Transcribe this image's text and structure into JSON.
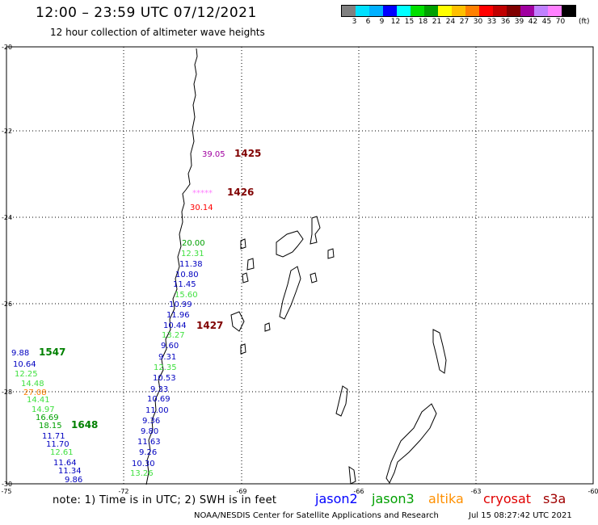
{
  "header": {
    "title": "12:00 – 23:59 UTC 07/12/2021",
    "subtitle": "12 hour collection of altimeter wave heights"
  },
  "legend": {
    "colors": [
      "#808080",
      "#00e0ff",
      "#00b0ff",
      "#0000ff",
      "#00ffff",
      "#00e000",
      "#00a000",
      "#ffff00",
      "#ffc000",
      "#ff8000",
      "#ff0000",
      "#c00000",
      "#800000",
      "#a000a0",
      "#c080ff",
      "#ff80ff",
      "#000000"
    ],
    "labels": [
      "3",
      "6",
      "9",
      "12",
      "15",
      "18",
      "21",
      "24",
      "27",
      "30",
      "33",
      "36",
      "39",
      "42",
      "45",
      "70"
    ],
    "unit": "(ft)"
  },
  "axes": {
    "lat_labels": [
      "-20",
      "-22",
      "-24",
      "-26",
      "-28",
      "-30"
    ],
    "lon_labels": [
      "-75",
      "-72",
      "-69",
      "-66",
      "-63",
      "-60"
    ]
  },
  "pass_times": [
    {
      "text": "1425",
      "color": "#800000"
    },
    {
      "text": "1426",
      "color": "#800000"
    },
    {
      "text": "1427",
      "color": "#800000"
    },
    {
      "text": "1547",
      "color": "#008000"
    },
    {
      "text": "1648",
      "color": "#008000"
    }
  ],
  "measurements": [
    {
      "text": "39.05",
      "color": "#a000a0"
    },
    {
      "text": "*****",
      "color": "#ff80ff"
    },
    {
      "text": "30.14",
      "color": "#ff0000"
    },
    {
      "text": "20.00",
      "color": "#00a000"
    },
    {
      "text": "12.31",
      "color": "#40e040"
    },
    {
      "text": "11.38",
      "color": "#0000c0"
    },
    {
      "text": "10.80",
      "color": "#0000c0"
    },
    {
      "text": "11.45",
      "color": "#0000c0"
    },
    {
      "text": "15.60",
      "color": "#40e040"
    },
    {
      "text": "10.99",
      "color": "#0000c0"
    },
    {
      "text": "11.96",
      "color": "#0000c0"
    },
    {
      "text": "10.44",
      "color": "#0000c0"
    },
    {
      "text": "13.27",
      "color": "#40e040"
    },
    {
      "text": "9.60",
      "color": "#0000c0"
    },
    {
      "text": "9.31",
      "color": "#0000c0"
    },
    {
      "text": "12.35",
      "color": "#40e040"
    },
    {
      "text": "10.53",
      "color": "#0000c0"
    },
    {
      "text": "9.33",
      "color": "#0000c0"
    },
    {
      "text": "10.69",
      "color": "#0000c0"
    },
    {
      "text": "11.00",
      "color": "#0000c0"
    },
    {
      "text": "9.36",
      "color": "#0000c0"
    },
    {
      "text": "9.80",
      "color": "#0000c0"
    },
    {
      "text": "11.63",
      "color": "#0000c0"
    },
    {
      "text": "9.26",
      "color": "#0000c0"
    },
    {
      "text": "10.30",
      "color": "#0000c0"
    },
    {
      "text": "13.26",
      "color": "#40e040"
    },
    {
      "text": "9.88",
      "color": "#0000c0"
    },
    {
      "text": "10.64",
      "color": "#0000c0"
    },
    {
      "text": "12.25",
      "color": "#40e040"
    },
    {
      "text": "14.48",
      "color": "#40e040"
    },
    {
      "text": "27.08",
      "color": "#ff8000"
    },
    {
      "text": "14.41",
      "color": "#40e040"
    },
    {
      "text": "14.97",
      "color": "#40e040"
    },
    {
      "text": "16.69",
      "color": "#00a000"
    },
    {
      "text": "18.15",
      "color": "#00a000"
    },
    {
      "text": "11.71",
      "color": "#0000c0"
    },
    {
      "text": "11.70",
      "color": "#0000c0"
    },
    {
      "text": "12.61",
      "color": "#40e040"
    },
    {
      "text": "11.64",
      "color": "#0000c0"
    },
    {
      "text": "11.34",
      "color": "#0000c0"
    },
    {
      "text": "9.86",
      "color": "#0000c0"
    }
  ],
  "footer": {
    "note": "note:  1) Time is in UTC;  2) SWH is in feet",
    "satellites": [
      {
        "name": "jason2",
        "color": "#0000ff"
      },
      {
        "name": "jason3",
        "color": "#00a000"
      },
      {
        "name": "altika",
        "color": "#ff9000"
      },
      {
        "name": "cryosat",
        "color": "#e00000"
      },
      {
        "name": "s3a",
        "color": "#a00000"
      }
    ],
    "credit": "NOAA/NESDIS Center for Satellite Applications and Research",
    "timestamp": "Jul 15 08:27:42 UTC 2021"
  }
}
